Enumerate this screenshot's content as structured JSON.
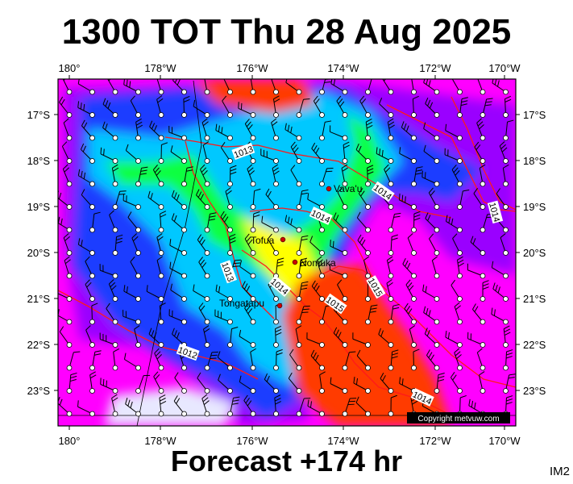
{
  "title": "1300 TOT Thu 28 Aug 2025",
  "subtitle": "Forecast +174 hr",
  "tag": "IM2",
  "copyright": "Copyright metvuw.com",
  "lon_labels": [
    "180°",
    "178°W",
    "176°W",
    "174°W",
    "172°W",
    "170°W"
  ],
  "lat_labels": [
    "17°S",
    "18°S",
    "19°S",
    "20°S",
    "21°S",
    "22°S",
    "23°S"
  ],
  "isobar_labels": [
    "1013",
    "1014",
    "1014",
    "1013",
    "1014",
    "1015",
    "1015",
    "1012",
    "1014",
    "1014"
  ],
  "places": [
    "Vava'u",
    "Tofua",
    "Nomuka",
    "Tongatapu"
  ],
  "colors": {
    "magenta": "#ff00ff",
    "purple": "#9a00ff",
    "blue": "#0030ff",
    "cyan": "#00c8ff",
    "green": "#00ff40",
    "yellow": "#ffff00",
    "orange": "#ff3a00",
    "isobar": "#ff1a1a"
  }
}
